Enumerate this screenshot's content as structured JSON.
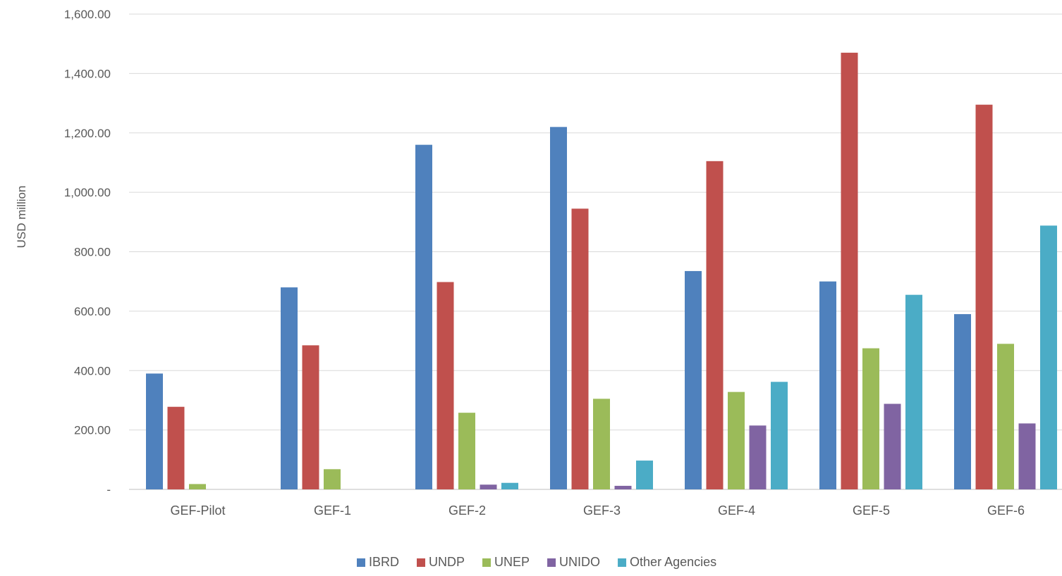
{
  "chart_data": {
    "type": "bar",
    "title": "",
    "xlabel": "",
    "ylabel": "USD million",
    "ylim": [
      0,
      1600
    ],
    "yticks": [
      0,
      200,
      400,
      600,
      800,
      1000,
      1200,
      1400,
      1600
    ],
    "ytick_labels": [
      "-",
      "200.00",
      "400.00",
      "600.00",
      "800.00",
      "1,000.00",
      "1,200.00",
      "1,400.00",
      "1,600.00"
    ],
    "grid": true,
    "legend_position": "bottom",
    "categories": [
      "GEF-Pilot",
      "GEF-1",
      "GEF-2",
      "GEF-3",
      "GEF-4",
      "GEF-5",
      "GEF-6"
    ],
    "series": [
      {
        "name": "IBRD",
        "color": "#4F81BD",
        "values": [
          390,
          680,
          1160,
          1220,
          735,
          700,
          590
        ]
      },
      {
        "name": "UNDP",
        "color": "#C0504D",
        "values": [
          278,
          485,
          698,
          945,
          1105,
          1470,
          1295
        ]
      },
      {
        "name": "UNEP",
        "color": "#9BBB59",
        "values": [
          18,
          68,
          258,
          305,
          328,
          475,
          490
        ]
      },
      {
        "name": "UNIDO",
        "color": "#8064A2",
        "values": [
          0,
          0,
          16,
          12,
          215,
          288,
          222
        ]
      },
      {
        "name": "Other Agencies",
        "color": "#4BACC6",
        "values": [
          0,
          0,
          22,
          97,
          362,
          655,
          888
        ]
      }
    ]
  }
}
